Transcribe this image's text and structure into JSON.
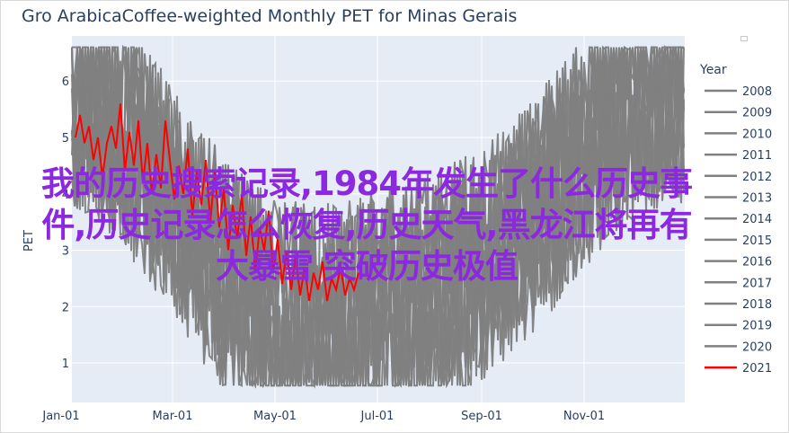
{
  "chart_data": {
    "type": "line",
    "title": "Gro ArabicaCoffee-weighted Monthly PET for Minas Gerais",
    "xlabel": "",
    "ylabel": "PET",
    "x_ticks": [
      "Jan-01",
      "Mar-01",
      "May-01",
      "Jul-01",
      "Sep-01",
      "Nov-01"
    ],
    "y_ticks": [
      1,
      2,
      3,
      4,
      5,
      6
    ],
    "ylim": [
      0.3,
      6.8
    ],
    "grid": true,
    "legend_title": "Year",
    "legend_position": "right",
    "series": [
      {
        "name": "2008",
        "color": "#808080"
      },
      {
        "name": "2009",
        "color": "#808080"
      },
      {
        "name": "2010",
        "color": "#808080"
      },
      {
        "name": "2011",
        "color": "#808080"
      },
      {
        "name": "2012",
        "color": "#808080"
      },
      {
        "name": "2013",
        "color": "#808080"
      },
      {
        "name": "2014",
        "color": "#808080"
      },
      {
        "name": "2015",
        "color": "#808080"
      },
      {
        "name": "2016",
        "color": "#808080"
      },
      {
        "name": "2017",
        "color": "#808080"
      },
      {
        "name": "2018",
        "color": "#808080"
      },
      {
        "name": "2019",
        "color": "#808080"
      },
      {
        "name": "2020",
        "color": "#808080"
      },
      {
        "name": "2021",
        "color": "#ff0000"
      }
    ],
    "highlight_series": "2021",
    "highlight_points": [
      [
        0,
        5.0
      ],
      [
        4,
        5.4
      ],
      [
        8,
        4.9
      ],
      [
        12,
        5.2
      ],
      [
        16,
        4.6
      ],
      [
        20,
        5.0
      ],
      [
        24,
        4.3
      ],
      [
        28,
        4.9
      ],
      [
        32,
        5.2
      ],
      [
        36,
        4.8
      ],
      [
        40,
        5.6
      ],
      [
        44,
        4.4
      ],
      [
        48,
        5.1
      ],
      [
        52,
        4.5
      ],
      [
        56,
        5.3
      ],
      [
        60,
        4.2
      ],
      [
        64,
        4.9
      ],
      [
        68,
        4.0
      ],
      [
        72,
        4.7
      ],
      [
        76,
        4.1
      ],
      [
        80,
        5.3
      ],
      [
        84,
        4.6
      ],
      [
        88,
        3.9
      ],
      [
        92,
        4.5
      ],
      [
        96,
        4.0
      ],
      [
        100,
        4.8
      ],
      [
        104,
        3.6
      ],
      [
        108,
        4.4
      ],
      [
        112,
        3.8
      ],
      [
        116,
        4.6
      ],
      [
        120,
        3.5
      ],
      [
        124,
        4.4
      ],
      [
        128,
        3.4
      ],
      [
        132,
        4.1
      ],
      [
        136,
        3.0
      ],
      [
        140,
        3.8
      ],
      [
        144,
        3.2
      ],
      [
        148,
        4.0
      ],
      [
        152,
        2.9
      ],
      [
        156,
        3.6
      ],
      [
        160,
        2.6
      ],
      [
        164,
        3.4
      ],
      [
        168,
        3.0
      ],
      [
        172,
        3.7
      ],
      [
        176,
        2.6
      ],
      [
        180,
        3.2
      ],
      [
        184,
        2.4
      ],
      [
        188,
        3.0
      ],
      [
        192,
        2.3
      ],
      [
        196,
        2.9
      ],
      [
        200,
        2.2
      ],
      [
        204,
        2.7
      ],
      [
        208,
        2.1
      ],
      [
        212,
        2.6
      ],
      [
        216,
        2.3
      ],
      [
        220,
        2.8
      ],
      [
        224,
        2.1
      ],
      [
        228,
        2.5
      ],
      [
        232,
        2.3
      ],
      [
        236,
        2.7
      ],
      [
        240,
        2.2
      ],
      [
        244,
        2.5
      ],
      [
        248,
        2.3
      ],
      [
        252,
        2.6
      ]
    ]
  },
  "overlay": {
    "line1": "我的历史搜索记录,1984年发生了什么历史事",
    "line2": "件,历史记录怎么恢复,历史天气,黑龙江将再有",
    "line3": "大暴雪 突破历史极值"
  }
}
